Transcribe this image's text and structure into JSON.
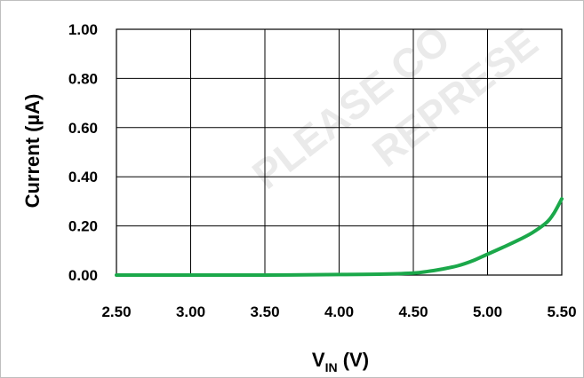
{
  "chart_data": {
    "type": "line",
    "title": "",
    "xlabel_main": "V",
    "xlabel_sub": "IN",
    "xlabel_unit": " (V)",
    "ylabel": "Current (µA)",
    "xlim": [
      2.5,
      5.5
    ],
    "ylim": [
      0,
      1.0
    ],
    "x_ticks": [
      "2.50",
      "3.00",
      "3.50",
      "4.00",
      "4.50",
      "5.00",
      "5.50"
    ],
    "y_ticks": [
      "0.00",
      "0.20",
      "0.40",
      "0.60",
      "0.80",
      "1.00"
    ],
    "grid": true,
    "legend": "none",
    "series": [
      {
        "color": "#1ba84a",
        "x": [
          2.5,
          3.0,
          3.5,
          4.0,
          4.3,
          4.5,
          4.6,
          4.7,
          4.8,
          4.9,
          5.0,
          5.1,
          5.2,
          5.3,
          5.4,
          5.45,
          5.5
        ],
        "y": [
          0.0,
          0.0,
          0.0,
          0.002,
          0.004,
          0.008,
          0.015,
          0.025,
          0.038,
          0.058,
          0.085,
          0.112,
          0.14,
          0.172,
          0.215,
          0.255,
          0.31
        ]
      }
    ]
  },
  "watermark": {
    "line1": "PLEASE CO",
    "line2": "REPRESE"
  }
}
